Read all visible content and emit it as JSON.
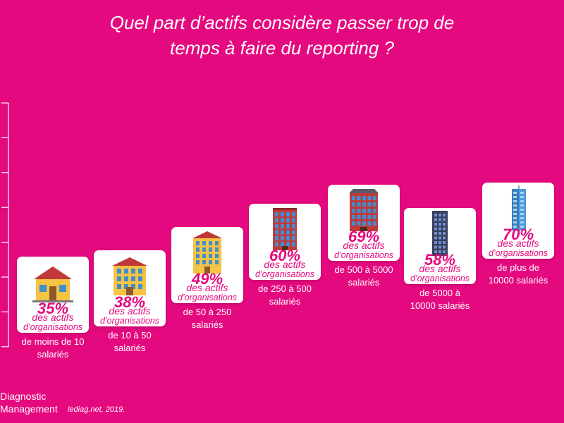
{
  "title_lines": [
    "Quel part d’actifs considère passer trop de",
    "temps à faire du reporting ?"
  ],
  "chart_data": {
    "type": "bar",
    "title": "Quel part d’actifs considère passer trop de temps à faire du reporting ?",
    "unit": "%",
    "categories": [
      "de moins de 10 salariés",
      "de 10 à 50 salariés",
      "de 50 à 250 salariés",
      "de 250 à 500 salariés",
      "de 500 à 5000 salariés",
      "de 5000 à 10000 salariés",
      "de plus de 10000 salariés"
    ],
    "values": [
      35,
      38,
      49,
      60,
      69,
      58,
      70
    ],
    "ylim": [
      0,
      80
    ]
  },
  "items": [
    {
      "pct": "35%",
      "line1": "des actifs",
      "line2": "d’organisations",
      "caption1": "de moins de 10",
      "caption2": "salariés",
      "icon": "house-icon"
    },
    {
      "pct": "38%",
      "line1": "des actifs",
      "line2": "d’organisations",
      "caption1": "de 10 à 50",
      "caption2": "salariés",
      "icon": "small-building-icon"
    },
    {
      "pct": "49%",
      "line1": "des actifs",
      "line2": "d’organisations",
      "caption1": "de 50 à 250",
      "caption2": "salariés",
      "icon": "office-building-icon"
    },
    {
      "pct": "60%",
      "line1": "des actifs",
      "line2": "d’organisations",
      "caption1": "de 250 à 500",
      "caption2": "salariés",
      "icon": "brick-building-icon"
    },
    {
      "pct": "69%",
      "line1": "des actifs",
      "line2": "d’organisations",
      "caption1": "de 500 à 5000",
      "caption2": "salariés",
      "icon": "large-building-icon"
    },
    {
      "pct": "58%",
      "line1": "des actifs",
      "line2": "d’organisations",
      "caption1": "de 5000 à",
      "caption2": "10000 salariés",
      "icon": "tower-icon"
    },
    {
      "pct": "70%",
      "line1": "des actifs",
      "line2": "d’organisations",
      "caption1": "de plus de",
      "caption2": "10000 salariés",
      "icon": "skyscraper-icon"
    }
  ],
  "footer": {
    "brand_line1": "Diagnostic",
    "brand_line2": "Management",
    "source": "lediag.net, 2019."
  },
  "colors": {
    "background": "#E5097F",
    "accent": "#E5097F",
    "card": "#FFFFFF"
  }
}
